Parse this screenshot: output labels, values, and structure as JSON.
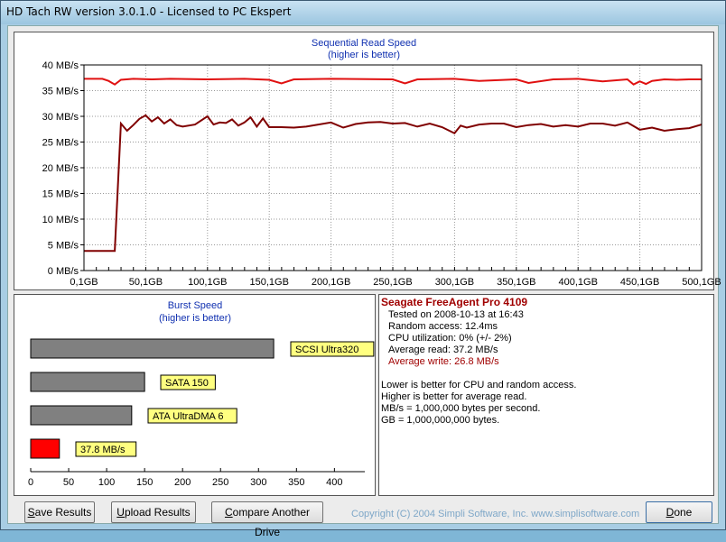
{
  "window": {
    "title": "HD Tach RW version 3.0.1.0 - Licensed to PC Ekspert"
  },
  "colors": {
    "read_line": "#e01010",
    "write_line": "#800000",
    "bar_gray": "#808080",
    "bar_red": "#ff0000",
    "label_bg": "#ffff80",
    "title_blue": "#1030b0",
    "write_text": "#a00000"
  },
  "sequential": {
    "title": "Sequential Read Speed",
    "subtitle": "(higher is better)",
    "y_ticks": [
      "40 MB/s",
      "35 MB/s",
      "30 MB/s",
      "25 MB/s",
      "20 MB/s",
      "15 MB/s",
      "10 MB/s",
      "5 MB/s",
      "0 MB/s"
    ],
    "x_ticks": [
      "0,1GB",
      "50,1GB",
      "100,1GB",
      "150,1GB",
      "200,1GB",
      "250,1GB",
      "300,1GB",
      "350,1GB",
      "400,1GB",
      "450,1GB",
      "500,1GB"
    ]
  },
  "chart_data": {
    "type": "line",
    "ylim": [
      0,
      40
    ],
    "xlim": [
      0.1,
      500.1
    ],
    "ylabel": "",
    "xlabel": "",
    "grid": true,
    "series": [
      {
        "x": [
          0.1,
          15,
          20,
          25,
          30,
          40,
          55,
          70,
          100,
          130,
          150,
          160,
          170,
          200,
          250,
          260,
          270,
          300,
          320,
          350,
          360,
          380,
          400,
          420,
          440,
          445,
          450,
          455,
          460,
          470,
          480,
          490,
          500.1
        ],
        "y": [
          37.3,
          37.3,
          36.9,
          36.2,
          37.1,
          37.3,
          37.2,
          37.3,
          37.2,
          37.3,
          37.1,
          36.4,
          37.2,
          37.3,
          37.2,
          36.4,
          37.2,
          37.3,
          36.9,
          37.2,
          36.5,
          37.2,
          37.3,
          36.8,
          37.2,
          36.2,
          36.8,
          36.3,
          36.9,
          37.2,
          37.1,
          37.2,
          37.2
        ]
      },
      {
        "x": [
          0.1,
          25,
          30,
          35,
          40,
          45,
          50,
          55,
          60,
          65,
          70,
          75,
          80,
          90,
          100,
          105,
          110,
          115,
          120,
          125,
          130,
          135,
          140,
          145,
          150,
          160,
          170,
          180,
          200,
          210,
          220,
          230,
          240,
          250,
          260,
          270,
          280,
          290,
          300,
          305,
          310,
          320,
          330,
          340,
          350,
          360,
          370,
          380,
          390,
          400,
          410,
          420,
          430,
          440,
          450,
          460,
          470,
          480,
          490,
          500.1
        ],
        "y": [
          3.8,
          3.8,
          28.6,
          27.2,
          28.3,
          29.5,
          30.2,
          29.0,
          29.8,
          28.6,
          29.4,
          28.3,
          28.0,
          28.4,
          30.0,
          28.4,
          28.8,
          28.7,
          29.4,
          28.2,
          28.8,
          29.8,
          28.0,
          29.6,
          27.9,
          27.9,
          27.8,
          28.0,
          28.8,
          27.8,
          28.5,
          28.8,
          28.9,
          28.6,
          28.7,
          28.0,
          28.6,
          27.9,
          26.7,
          28.2,
          27.8,
          28.4,
          28.6,
          28.6,
          27.9,
          28.3,
          28.5,
          28.0,
          28.3,
          28.0,
          28.6,
          28.6,
          28.2,
          28.8,
          27.4,
          27.8,
          27.2,
          27.5,
          27.7,
          28.4
        ]
      }
    ]
  },
  "burst": {
    "title": "Burst Speed",
    "subtitle": "(higher is better)",
    "x_ticks": [
      "0",
      "50",
      "100",
      "150",
      "200",
      "250",
      "300",
      "350",
      "400"
    ],
    "bars": [
      {
        "label": "SCSI Ultra320",
        "value": 320,
        "color": "#808080"
      },
      {
        "label": "SATA 150",
        "value": 150,
        "color": "#808080"
      },
      {
        "label": "ATA UltraDMA 6",
        "value": 133,
        "color": "#808080"
      },
      {
        "label": "37.8 MB/s",
        "value": 37.8,
        "color": "#ff0000"
      }
    ]
  },
  "info": {
    "drive": "Seagate FreeAgent Pro 4109",
    "tested": "Tested on 2008-10-13 at 16:43",
    "random": "Random access: 12.4ms",
    "cpu": "CPU utilization: 0% (+/- 2%)",
    "avg_read": "Average read: 37.2 MB/s",
    "avg_write": "Average write: 26.8 MB/s",
    "note1": "Lower is better for CPU and random access.",
    "note2": "Higher is better for average read.",
    "note3": "MB/s = 1,000,000 bytes per second.",
    "note4": "GB = 1,000,000,000 bytes."
  },
  "buttons": {
    "save_u": "S",
    "save_rest": "ave Results",
    "upload_u": "U",
    "upload_rest": "pload Results",
    "compare_u": "C",
    "compare_rest": "ompare Another Drive",
    "done_u": "D",
    "done_rest": "one"
  },
  "copyright": "Copyright (C) 2004 Simpli Software, Inc. www.simplisoftware.com"
}
